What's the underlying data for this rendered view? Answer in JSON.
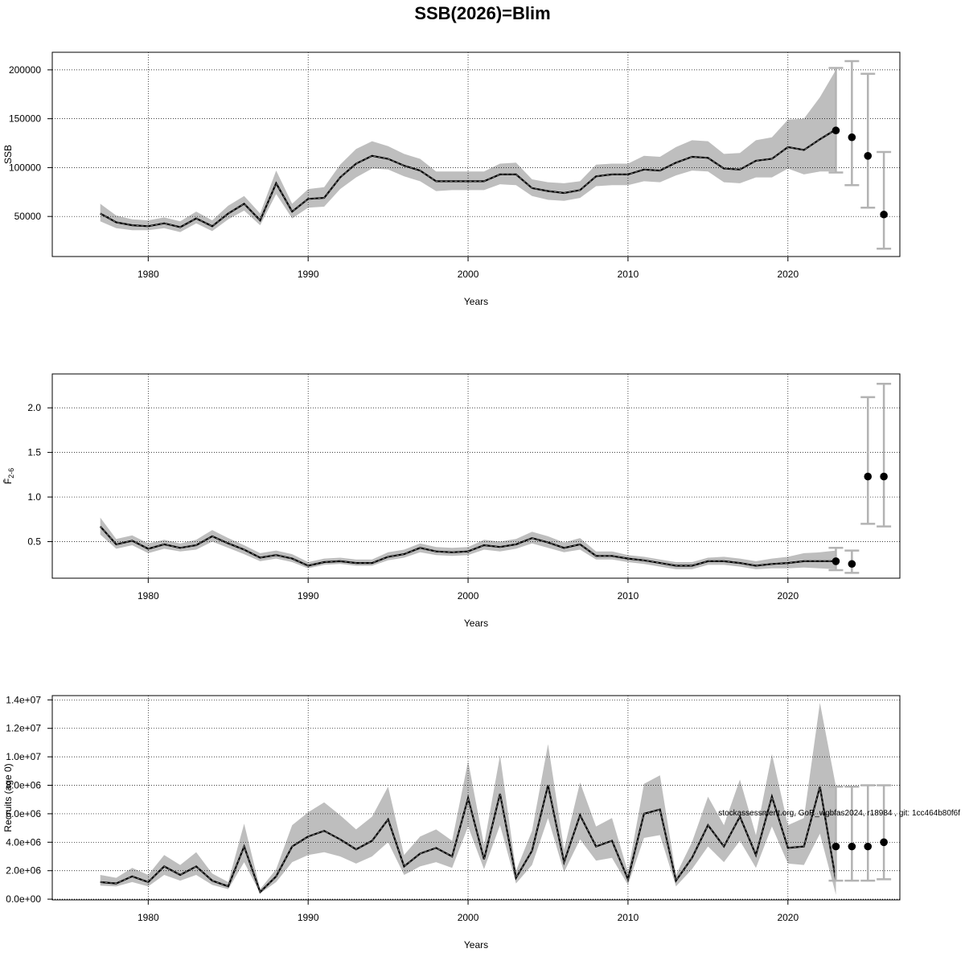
{
  "title": "SSB(2026)=Blim",
  "watermark": "stockassessment.org, GoR_wgbfas2024, r18984 , git: 1cc464b80f6f",
  "colors": {
    "band": "#bebebe",
    "line": "#000000",
    "grid": "#000000",
    "whisker": "#b3b3b3",
    "dot": "#000000"
  },
  "chart_data": [
    {
      "type": "line",
      "ylabel": "SSB",
      "xlabel": "Years",
      "xlim": [
        1974,
        2027
      ],
      "ylim": [
        9000,
        218000
      ],
      "x_ticks": [
        1980,
        1990,
        2000,
        2010,
        2020
      ],
      "y_ticks": [
        50000,
        100000,
        150000,
        200000
      ],
      "y_tick_labels": [
        "50000",
        "100000",
        "150000",
        "200000"
      ],
      "grid": true,
      "years": [
        1977,
        1978,
        1979,
        1980,
        1981,
        1982,
        1983,
        1984,
        1985,
        1986,
        1987,
        1988,
        1989,
        1990,
        1991,
        1992,
        1993,
        1994,
        1995,
        1996,
        1997,
        1998,
        1999,
        2000,
        2001,
        2002,
        2003,
        2004,
        2005,
        2006,
        2007,
        2008,
        2009,
        2010,
        2011,
        2012,
        2013,
        2014,
        2015,
        2016,
        2017,
        2018,
        2019,
        2020,
        2021,
        2022,
        2023
      ],
      "estimate": [
        53000,
        44000,
        41000,
        40000,
        43000,
        39000,
        48000,
        40000,
        53000,
        63000,
        46000,
        84000,
        55000,
        68000,
        69000,
        90000,
        104000,
        112000,
        109000,
        102000,
        97000,
        86000,
        86000,
        86000,
        86000,
        93000,
        93000,
        79000,
        76000,
        74000,
        77000,
        91000,
        93000,
        93000,
        98000,
        97000,
        105000,
        111000,
        110000,
        99000,
        98000,
        107000,
        109000,
        121000,
        118000,
        129000,
        139000
      ],
      "lower": [
        45000,
        38000,
        36000,
        36000,
        38000,
        34000,
        43000,
        35000,
        47000,
        56000,
        41000,
        73000,
        48000,
        59000,
        60000,
        78000,
        90000,
        99000,
        98000,
        91000,
        86000,
        76000,
        77000,
        77000,
        77000,
        83000,
        82000,
        71000,
        67000,
        66000,
        69000,
        81000,
        82000,
        82000,
        86000,
        85000,
        92000,
        97000,
        96000,
        85000,
        84000,
        90000,
        90000,
        99000,
        93000,
        96000,
        96000
      ],
      "upper": [
        63000,
        51000,
        47000,
        46000,
        49000,
        45000,
        55000,
        46000,
        61000,
        71000,
        53000,
        97000,
        63000,
        78000,
        80000,
        103000,
        119000,
        127000,
        122000,
        114000,
        109000,
        96000,
        96000,
        96000,
        96000,
        104000,
        105000,
        88000,
        85000,
        84000,
        86000,
        103000,
        104000,
        104000,
        112000,
        111000,
        121000,
        128000,
        127000,
        114000,
        115000,
        128000,
        131000,
        149000,
        150000,
        172000,
        200000
      ],
      "forecast": [
        {
          "year": 2023,
          "median": 138000,
          "low": 95000,
          "high": 202000
        },
        {
          "year": 2024,
          "median": 131000,
          "low": 82000,
          "high": 209000
        },
        {
          "year": 2025,
          "median": 112000,
          "low": 59000,
          "high": 196000
        },
        {
          "year": 2026,
          "median": 52000,
          "low": 17000,
          "high": 116000
        }
      ]
    },
    {
      "type": "line",
      "ylabel": "F̄",
      "ylabel_sub": "2-6",
      "xlabel": "Years",
      "xlim": [
        1974,
        2027
      ],
      "ylim": [
        0.09,
        2.38
      ],
      "x_ticks": [
        1980,
        1990,
        2000,
        2010,
        2020
      ],
      "y_ticks": [
        0.5,
        1.0,
        1.5,
        2.0
      ],
      "y_tick_labels": [
        "0.5",
        "1.0",
        "1.5",
        "2.0"
      ],
      "grid": true,
      "years": [
        1977,
        1978,
        1979,
        1980,
        1981,
        1982,
        1983,
        1984,
        1985,
        1986,
        1987,
        1988,
        1989,
        1990,
        1991,
        1992,
        1993,
        1994,
        1995,
        1996,
        1997,
        1998,
        1999,
        2000,
        2001,
        2002,
        2003,
        2004,
        2005,
        2006,
        2007,
        2008,
        2009,
        2010,
        2011,
        2012,
        2013,
        2014,
        2015,
        2016,
        2017,
        2018,
        2019,
        2020,
        2021,
        2022,
        2023
      ],
      "estimate": [
        0.67,
        0.47,
        0.51,
        0.42,
        0.47,
        0.43,
        0.46,
        0.56,
        0.48,
        0.41,
        0.32,
        0.35,
        0.31,
        0.23,
        0.27,
        0.28,
        0.26,
        0.26,
        0.33,
        0.36,
        0.43,
        0.39,
        0.38,
        0.39,
        0.46,
        0.44,
        0.47,
        0.54,
        0.49,
        0.43,
        0.47,
        0.34,
        0.34,
        0.31,
        0.29,
        0.26,
        0.23,
        0.23,
        0.28,
        0.28,
        0.26,
        0.23,
        0.25,
        0.26,
        0.28,
        0.28,
        0.28
      ],
      "lower": [
        0.58,
        0.42,
        0.46,
        0.37,
        0.42,
        0.39,
        0.41,
        0.5,
        0.43,
        0.36,
        0.28,
        0.31,
        0.27,
        0.2,
        0.24,
        0.25,
        0.23,
        0.23,
        0.29,
        0.32,
        0.38,
        0.35,
        0.34,
        0.35,
        0.41,
        0.39,
        0.42,
        0.48,
        0.43,
        0.38,
        0.41,
        0.3,
        0.3,
        0.27,
        0.25,
        0.22,
        0.19,
        0.19,
        0.24,
        0.24,
        0.22,
        0.19,
        0.2,
        0.2,
        0.21,
        0.2,
        0.19
      ],
      "upper": [
        0.77,
        0.53,
        0.57,
        0.48,
        0.52,
        0.48,
        0.52,
        0.63,
        0.54,
        0.46,
        0.37,
        0.4,
        0.36,
        0.27,
        0.31,
        0.32,
        0.3,
        0.3,
        0.38,
        0.41,
        0.48,
        0.44,
        0.43,
        0.44,
        0.52,
        0.5,
        0.53,
        0.61,
        0.56,
        0.49,
        0.54,
        0.39,
        0.39,
        0.35,
        0.33,
        0.3,
        0.27,
        0.27,
        0.32,
        0.33,
        0.31,
        0.28,
        0.31,
        0.33,
        0.37,
        0.38,
        0.4
      ],
      "forecast": [
        {
          "year": 2023,
          "median": 0.28,
          "low": 0.18,
          "high": 0.43
        },
        {
          "year": 2024,
          "median": 0.25,
          "low": 0.15,
          "high": 0.4
        },
        {
          "year": 2025,
          "median": 1.23,
          "low": 0.7,
          "high": 2.12
        },
        {
          "year": 2026,
          "median": 1.23,
          "low": 0.67,
          "high": 2.27
        }
      ]
    },
    {
      "type": "line",
      "ylabel": "Recruits (age 0)",
      "xlabel": "Years",
      "xlim": [
        1974,
        2027
      ],
      "ylim": [
        -50000,
        14300000
      ],
      "x_ticks": [
        1980,
        1990,
        2000,
        2010,
        2020
      ],
      "y_ticks": [
        0,
        2000000,
        4000000,
        6000000,
        8000000,
        10000000,
        12000000,
        14000000
      ],
      "y_tick_labels": [
        "0.0e+00",
        "2.0e+06",
        "4.0e+06",
        "6.0e+06",
        "8.0e+06",
        "1.0e+07",
        "1.2e+07",
        "1.4e+07"
      ],
      "grid": true,
      "years": [
        1977,
        1978,
        1979,
        1980,
        1981,
        1982,
        1983,
        1984,
        1985,
        1986,
        1987,
        1988,
        1989,
        1990,
        1991,
        1992,
        1993,
        1994,
        1995,
        1996,
        1997,
        1998,
        1999,
        2000,
        2001,
        2002,
        2003,
        2004,
        2005,
        2006,
        2007,
        2008,
        2009,
        2010,
        2011,
        2012,
        2013,
        2014,
        2015,
        2016,
        2017,
        2018,
        2019,
        2020,
        2021,
        2022,
        2023
      ],
      "estimate": [
        1200000,
        1100000,
        1600000,
        1200000,
        2300000,
        1700000,
        2300000,
        1300000,
        900000,
        3700000,
        500000,
        1600000,
        3700000,
        4400000,
        4800000,
        4200000,
        3500000,
        4100000,
        5600000,
        2300000,
        3200000,
        3600000,
        3000000,
        7100000,
        2800000,
        7400000,
        1500000,
        3400000,
        8000000,
        2600000,
        5900000,
        3700000,
        4100000,
        1400000,
        6000000,
        6300000,
        1300000,
        2900000,
        5200000,
        3700000,
        5800000,
        3100000,
        7200000,
        3600000,
        3700000,
        7900000,
        1300000
      ],
      "lower": [
        950000,
        900000,
        1200000,
        900000,
        1700000,
        1300000,
        1700000,
        1000000,
        700000,
        2600000,
        400000,
        1200000,
        2600000,
        3100000,
        3300000,
        3000000,
        2500000,
        3000000,
        4000000,
        1700000,
        2300000,
        2600000,
        2200000,
        5100000,
        2100000,
        5200000,
        1100000,
        2400000,
        5700000,
        1900000,
        4200000,
        2700000,
        2900000,
        1000000,
        4300000,
        4500000,
        900000,
        2100000,
        3700000,
        2600000,
        4100000,
        2200000,
        5100000,
        2500000,
        2400000,
        4600000,
        300000
      ],
      "upper": [
        1700000,
        1500000,
        2200000,
        1700000,
        3100000,
        2400000,
        3300000,
        1800000,
        1200000,
        5300000,
        700000,
        2100000,
        5200000,
        6100000,
        6800000,
        5900000,
        4900000,
        5800000,
        7900000,
        3100000,
        4400000,
        4900000,
        4100000,
        9700000,
        3800000,
        10100000,
        2000000,
        4800000,
        10900000,
        3500000,
        8200000,
        5100000,
        5700000,
        1900000,
        8100000,
        8700000,
        1700000,
        4000000,
        7200000,
        5200000,
        8400000,
        4500000,
        10200000,
        5200000,
        5700000,
        13800000,
        7900000
      ],
      "forecast": [
        {
          "year": 2023,
          "median": 3700000,
          "low": 1300000,
          "high": 7900000
        },
        {
          "year": 2024,
          "median": 3700000,
          "low": 1300000,
          "high": 7900000
        },
        {
          "year": 2025,
          "median": 3700000,
          "low": 1300000,
          "high": 8000000
        },
        {
          "year": 2026,
          "median": 4000000,
          "low": 1400000,
          "high": 8000000
        }
      ]
    }
  ]
}
